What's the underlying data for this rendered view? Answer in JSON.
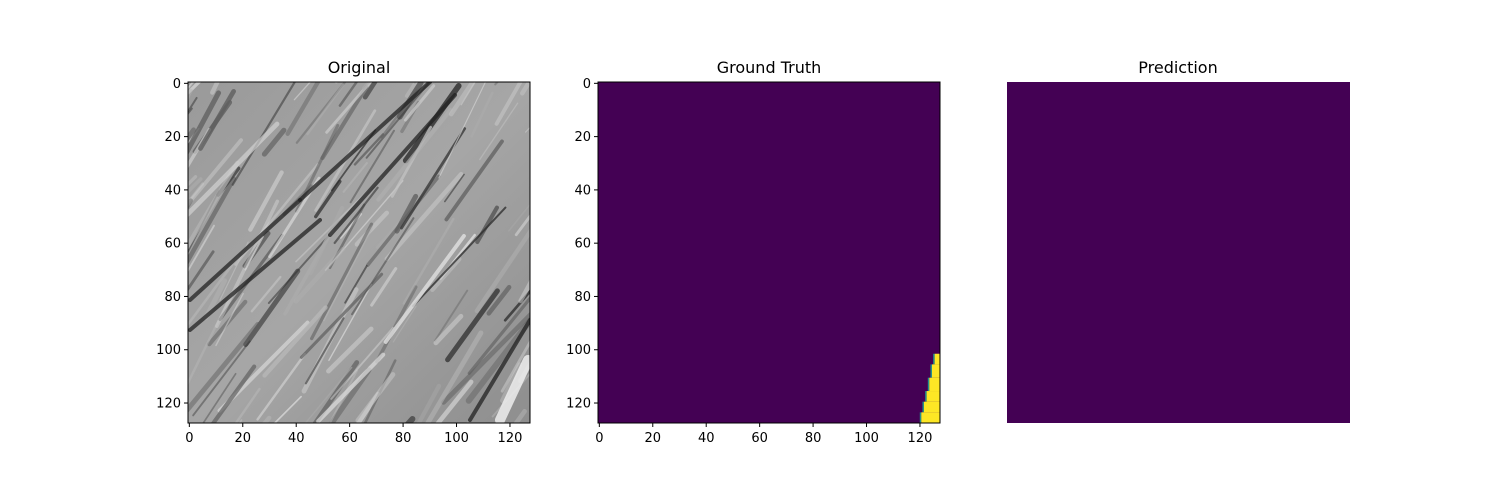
{
  "chart_data": [
    {
      "type": "heatmap",
      "title": "Original",
      "colormap": "gray",
      "xlim": [
        0,
        127
      ],
      "ylim": [
        127,
        0
      ],
      "x_ticks": [
        0,
        20,
        40,
        60,
        80,
        100,
        120
      ],
      "y_ticks": [
        0,
        20,
        40,
        60,
        80,
        100,
        120
      ],
      "show_axes": true,
      "description": "grayscale terrain texture with diagonal ridges"
    },
    {
      "type": "heatmap",
      "title": "Ground Truth",
      "colormap": "viridis",
      "colors": {
        "background": "#440154",
        "mask": "#fde725",
        "edge": "#21918c"
      },
      "xlim": [
        0,
        127
      ],
      "ylim": [
        127,
        0
      ],
      "x_ticks": [
        0,
        20,
        40,
        60,
        80,
        100,
        120
      ],
      "y_ticks": [
        0,
        20,
        40,
        60,
        80,
        100,
        120
      ],
      "show_axes": true,
      "mask_region_steps": [
        [
          102,
          126
        ],
        [
          106,
          125
        ],
        [
          111,
          124
        ],
        [
          116,
          123
        ],
        [
          120,
          122
        ],
        [
          124,
          121
        ]
      ]
    },
    {
      "type": "heatmap",
      "title": "Prediction",
      "colormap": "viridis",
      "colors": {
        "background": "#440154"
      },
      "show_axes": false
    }
  ]
}
